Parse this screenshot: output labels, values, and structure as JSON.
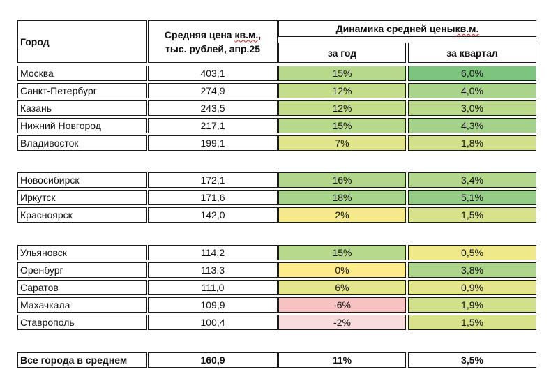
{
  "header": {
    "city": "Город",
    "price_line1_a": "Средняя цена ",
    "price_line1_b": "кв.м.",
    "price_line1_c": ",",
    "price_line2": "тыс. рублей, апр.25",
    "dynamics_a": "Динамика средней цены ",
    "dynamics_b": "кв.м.",
    "year": "за год",
    "quarter": "за квартал"
  },
  "rows": [
    {
      "city": "Москва",
      "price": "403,1",
      "year": "15%",
      "quarter": "6,0%",
      "year_color": "#b7d98b",
      "quarter_color": "#7dc47e"
    },
    {
      "city": "Санкт-Петербург",
      "price": "274,9",
      "year": "12%",
      "quarter": "4,0%",
      "year_color": "#c4dd8b",
      "quarter_color": "#a9d48a"
    },
    {
      "city": "Казань",
      "price": "243,5",
      "year": "12%",
      "quarter": "3,0%",
      "year_color": "#c4dd8b",
      "quarter_color": "#bcda8b"
    },
    {
      "city": "Нижний Новгород",
      "price": "217,1",
      "year": "15%",
      "quarter": "4,3%",
      "year_color": "#b7d98b",
      "quarter_color": "#a4d28a"
    },
    {
      "city": "Владивосток",
      "price": "199,1",
      "year": "7%",
      "quarter": "1,8%",
      "year_color": "#e0e58c",
      "quarter_color": "#d2e08b"
    },
    {
      "city": "Новосибирск",
      "price": "172,1",
      "year": "16%",
      "quarter": "3,4%",
      "year_color": "#b2d78a",
      "quarter_color": "#b4d88b"
    },
    {
      "city": "Иркутск",
      "price": "171,6",
      "year": "18%",
      "quarter": "5,1%",
      "year_color": "#a8d38a",
      "quarter_color": "#95cd86"
    },
    {
      "city": "Красноярск",
      "price": "142,0",
      "year": "2%",
      "quarter": "1,5%",
      "year_color": "#f4ea8b",
      "quarter_color": "#d8e28b"
    },
    {
      "city": "Ульяновск",
      "price": "114,2",
      "year": "15%",
      "quarter": "0,5%",
      "year_color": "#b7d98b",
      "quarter_color": "#efe98a"
    },
    {
      "city": "Оренбург",
      "price": "113,3",
      "year": "0%",
      "quarter": "3,8%",
      "year_color": "#fdeb8c",
      "quarter_color": "#add58b"
    },
    {
      "city": "Саратов",
      "price": "111,0",
      "year": "6%",
      "quarter": "0,9%",
      "year_color": "#e3e68c",
      "quarter_color": "#e4e68c"
    },
    {
      "city": "Махачкала",
      "price": "109,9",
      "year": "-6%",
      "quarter": "1,9%",
      "year_color": "#f8c2c2",
      "quarter_color": "#d0e08b"
    },
    {
      "city": "Ставрополь",
      "price": "100,4",
      "year": "-2%",
      "quarter": "1,5%",
      "year_color": "#f8dcdc",
      "quarter_color": "#d8e28b"
    }
  ],
  "total": {
    "city": "Все города в среднем",
    "price": "160,9",
    "year": "11%",
    "quarter": "3,5%"
  }
}
